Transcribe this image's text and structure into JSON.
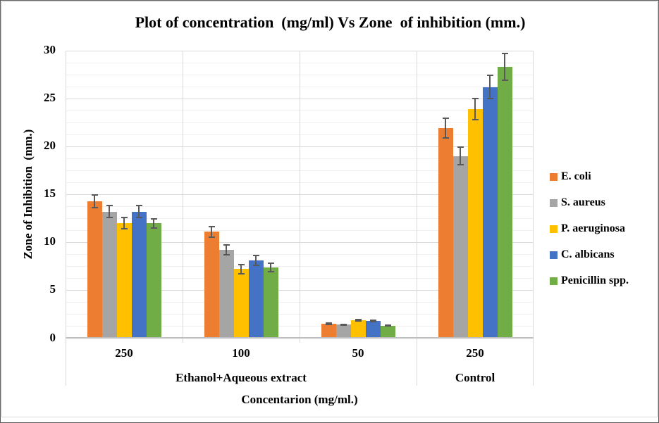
{
  "chart_data": {
    "type": "bar",
    "title": "Plot of concentration  (mg/ml) Vs Zone  of inhibition (mm.)",
    "ylabel": "Zone of Inhibition  (mm.)",
    "xlabel": "Concentarion (mg/ml.)",
    "ylim": [
      0,
      30
    ],
    "y_major_ticks": [
      0,
      5,
      10,
      15,
      20,
      25,
      30
    ],
    "y_minor_unit": 1.25,
    "grid": true,
    "legend_position": "right",
    "categories": [
      "250",
      "100",
      "50",
      "250"
    ],
    "category_groups": [
      {
        "label": "Ethanol+Aqueous extract",
        "span": [
          0,
          2
        ]
      },
      {
        "label": "Control",
        "span": [
          3,
          3
        ]
      }
    ],
    "series": [
      {
        "name": "E. coli",
        "color": "#ED7D31",
        "values": [
          14.3,
          11.1,
          1.5,
          21.9
        ],
        "errors": [
          0.75,
          0.65,
          0.15,
          1.1
        ]
      },
      {
        "name": "S. aureus",
        "color": "#A5A5A5",
        "values": [
          13.2,
          9.2,
          1.4,
          19.0
        ],
        "errors": [
          0.7,
          0.6,
          0.12,
          1.0
        ]
      },
      {
        "name": "P. aeruginosa",
        "color": "#FFC000",
        "values": [
          12.0,
          7.2,
          1.9,
          23.9
        ],
        "errors": [
          0.65,
          0.55,
          0.15,
          1.2
        ]
      },
      {
        "name": "C. albicans",
        "color": "#4472C4",
        "values": [
          13.2,
          8.1,
          1.8,
          26.2
        ],
        "errors": [
          0.7,
          0.6,
          0.15,
          1.3
        ]
      },
      {
        "name": "Penicillin spp.",
        "color": "#70AD47",
        "values": [
          12.0,
          7.4,
          1.3,
          28.3
        ],
        "errors": [
          0.55,
          0.5,
          0.12,
          1.45
        ]
      }
    ],
    "error_bar_color": "#595959",
    "gridline_major_color": "#D9D9D9",
    "gridline_minor_color": "#F0F0F0"
  }
}
